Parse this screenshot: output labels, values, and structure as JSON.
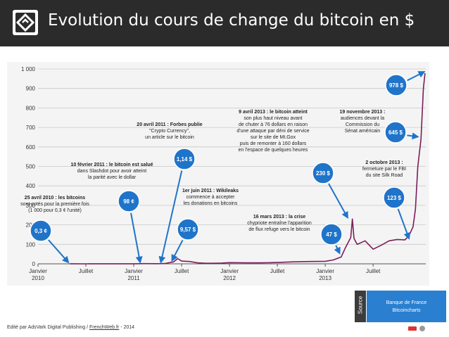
{
  "header": {
    "title": "Evolution du cours de change du bitcoin en $"
  },
  "footer": {
    "prefix": "Edité par AdsVark Digital Publishing / ",
    "link": "FrenchWeb.fr",
    "suffix": " - 2014"
  },
  "source": {
    "label": "Source",
    "line1": "Banque de France",
    "line2": "Bitcoincharts"
  },
  "colors": {
    "line": "#7a1e5a",
    "bubble": "#1f74c9",
    "arrow": "#1f74c9",
    "grid": "#c8c8c8",
    "header_bg": "#2b2b2b",
    "source_bg": "#2a7fd0"
  },
  "chart_data": {
    "type": "line",
    "title": "",
    "xlabel": "",
    "ylabel": "",
    "ylim": [
      0,
      1000
    ],
    "yticks": [
      "0",
      "100",
      "200",
      "300",
      "400",
      "500",
      "600",
      "700",
      "800",
      "900",
      "1 000"
    ],
    "xticks": [
      {
        "t": 0,
        "lines": [
          "Janvier",
          "2010"
        ]
      },
      {
        "t": 6,
        "lines": [
          "Juillet"
        ]
      },
      {
        "t": 12,
        "lines": [
          "Janvier",
          "2011"
        ]
      },
      {
        "t": 18,
        "lines": [
          "Juillet"
        ]
      },
      {
        "t": 24,
        "lines": [
          "Janvier",
          "2012"
        ]
      },
      {
        "t": 30,
        "lines": [
          "Juillet"
        ]
      },
      {
        "t": 36,
        "lines": [
          "Janvier",
          "2013"
        ]
      },
      {
        "t": 42,
        "lines": [
          "Juillet"
        ]
      }
    ],
    "x_unit": "months since January 2010",
    "series": [
      {
        "points": [
          [
            4,
            0.3
          ],
          [
            6,
            0.1
          ],
          [
            9,
            0.2
          ],
          [
            12,
            0.5
          ],
          [
            13.3,
            1
          ],
          [
            15,
            0.9
          ],
          [
            16,
            2
          ],
          [
            17,
            10
          ],
          [
            17.5,
            27
          ],
          [
            18,
            14
          ],
          [
            19,
            12
          ],
          [
            20,
            5
          ],
          [
            21,
            3
          ],
          [
            22,
            3
          ],
          [
            23,
            4
          ],
          [
            24,
            6
          ],
          [
            26,
            5
          ],
          [
            28,
            5
          ],
          [
            30,
            7
          ],
          [
            32,
            10
          ],
          [
            34,
            12
          ],
          [
            36,
            13
          ],
          [
            37,
            20
          ],
          [
            38,
            35
          ],
          [
            38.5,
            80
          ],
          [
            39.2,
            135
          ],
          [
            39.4,
            230
          ],
          [
            39.6,
            130
          ],
          [
            40,
            100
          ],
          [
            41,
            118
          ],
          [
            42,
            75
          ],
          [
            43,
            95
          ],
          [
            44,
            118
          ],
          [
            45,
            125
          ],
          [
            46,
            123
          ],
          [
            46.5,
            145
          ],
          [
            47,
            190
          ],
          [
            47.3,
            280
          ],
          [
            47.6,
            500
          ],
          [
            48.0,
            640
          ],
          [
            48.3,
            900
          ],
          [
            48.5,
            978
          ]
        ]
      }
    ],
    "bubbles": [
      {
        "label": "0,3 ¢"
      },
      {
        "label": "98 ¢"
      },
      {
        "label": "1,14 $"
      },
      {
        "label": "9,57 $"
      },
      {
        "label": "47 $"
      },
      {
        "label": "230 $"
      },
      {
        "label": "123 $"
      },
      {
        "label": "645 $"
      },
      {
        "label": "978 $"
      }
    ],
    "annotations": [
      {
        "lines": [
          "25 avril 2010 : les bitcoins",
          "sont cotés pour la première fois",
          "(1 000 pour 0,3 ¢ l'unité)"
        ]
      },
      {
        "lines": [
          "10 février 2011 : le bitcoin est salué",
          "dans Slashdot pour avoir atteint",
          "la parité avec le dollar"
        ]
      },
      {
        "lines": [
          "20 avril 2011 : Forbes publie",
          "\"Crypto Currency\",",
          "un article sur le bitcoin"
        ]
      },
      {
        "lines": [
          "1er juin 2011 : Wikileaks",
          "commence à accepter",
          "les donations en bitcoins"
        ]
      },
      {
        "lines": [
          "9 avril 2013 : le bitcoin atteint",
          "son plus haut niveau avant",
          "de chuter à 76 dollars en raison",
          "d'une attaque par déni de service",
          "sur le site de Mt.Gox",
          "puis de remonter à 160 dollars",
          "en l'espace de quelques heures"
        ]
      },
      {
        "lines": [
          "16 mars 2013 : la crise",
          "chypriote entraîne l'apparition",
          "de flux refuge vers le bitcoin"
        ]
      },
      {
        "lines": [
          "19 novembre 2013 :",
          "audiences devant la",
          "Commission du",
          "Sénat américain"
        ]
      },
      {
        "lines": [
          "2 octobre 2013 :",
          "fermeture par le FBI",
          "du site Silk Road"
        ]
      }
    ]
  }
}
